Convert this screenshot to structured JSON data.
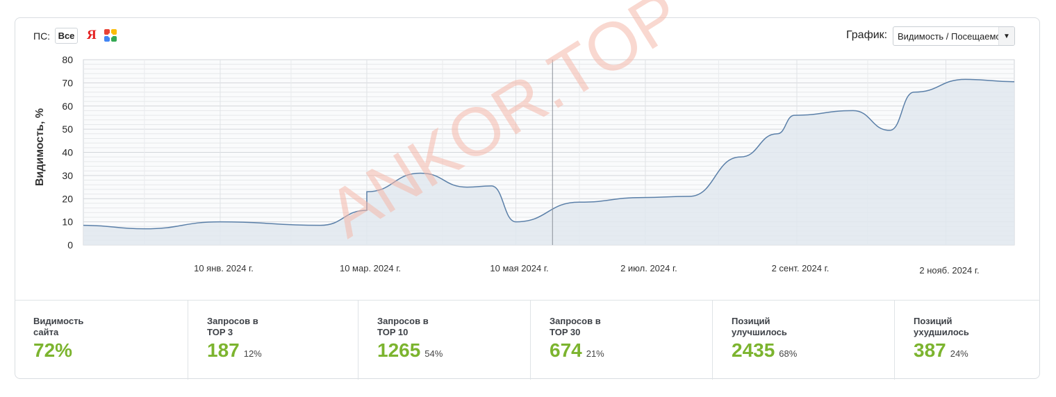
{
  "filters": {
    "ps_label": "ПС:",
    "all_button": "Все",
    "yandex_glyph": "Я",
    "graph_label": "График:",
    "graph_select_value": "Видимость / Посещаемость"
  },
  "watermark": "ANKOR.TOP",
  "colors": {
    "accent": "#7cb42f",
    "line": "#5a7fa8",
    "fill": "#e0e7ef",
    "watermark": "#f4b8aa"
  },
  "chart_data": {
    "type": "area",
    "ylabel": "Видимость, %",
    "ylim": [
      0,
      80
    ],
    "yticks": [
      "0",
      "10",
      "20",
      "30",
      "40",
      "50",
      "60",
      "70",
      "80"
    ],
    "xticks": [
      "10 янв. 2024 г.",
      "10 мар. 2024 г.",
      "10 мая 2024 г.",
      "2 июл. 2024 г.",
      "2 сент. 2024 г.",
      "2 нояб. 2024 г."
    ],
    "series": [
      {
        "values": [
          [
            "2023-11-15",
            8.5
          ],
          [
            "2023-12-10",
            7
          ],
          [
            "2024-01-10",
            10
          ],
          [
            "2024-02-20",
            8.5
          ],
          [
            "2024-03-10",
            15
          ],
          [
            "2024-03-10",
            23
          ],
          [
            "2024-04-01",
            31
          ],
          [
            "2024-04-20",
            25
          ],
          [
            "2024-04-30",
            25.5
          ],
          [
            "2024-05-10",
            10
          ],
          [
            "2024-06-05",
            18.5
          ],
          [
            "2024-07-01",
            20.5
          ],
          [
            "2024-07-20",
            21
          ],
          [
            "2024-08-10",
            38
          ],
          [
            "2024-08-25",
            48
          ],
          [
            "2024-09-01",
            56
          ],
          [
            "2024-09-25",
            58
          ],
          [
            "2024-10-10",
            49.5
          ],
          [
            "2024-10-20",
            66
          ],
          [
            "2024-11-10",
            71.5
          ],
          [
            "2024-11-30",
            70.5
          ]
        ]
      }
    ]
  },
  "stats": [
    {
      "label": "Видимость\nсайта",
      "value": "72%",
      "pct": ""
    },
    {
      "label": "Запросов в\nTOP 3",
      "value": "187",
      "pct": "12%"
    },
    {
      "label": "Запросов в\nTOP 10",
      "value": "1265",
      "pct": "54%"
    },
    {
      "label": "Запросов в\nTOP 30",
      "value": "674",
      "pct": "21%"
    },
    {
      "label": "Позиций\nулучшилось",
      "value": "2435",
      "pct": "68%"
    },
    {
      "label": "Позиций\nухудшилось",
      "value": "387",
      "pct": "24%"
    }
  ]
}
